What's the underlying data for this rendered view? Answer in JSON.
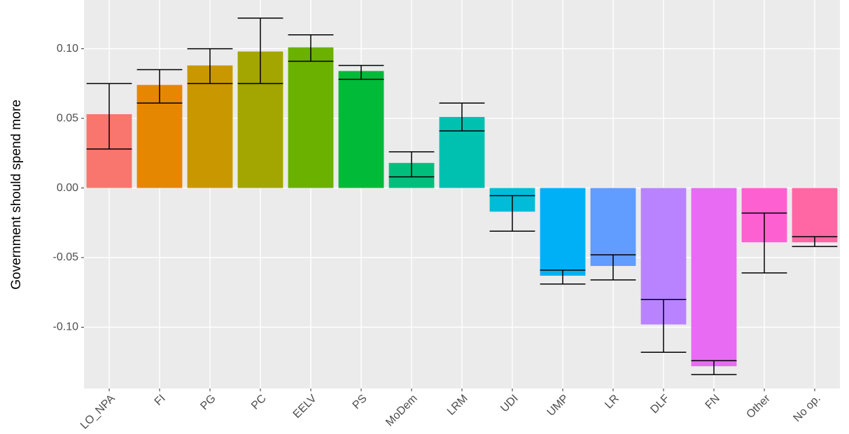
{
  "chart_data": {
    "type": "bar",
    "y_label": "Government should spend more",
    "categories": [
      "LO_NPA",
      "FI",
      "PG",
      "PC",
      "EELV",
      "PS",
      "MoDem",
      "LRM",
      "UDI",
      "UMP",
      "LR",
      "DLF",
      "FN",
      "Other",
      "No op."
    ],
    "values": [
      0.053,
      0.074,
      0.088,
      0.098,
      0.101,
      0.084,
      0.018,
      0.051,
      -0.017,
      -0.063,
      -0.056,
      -0.098,
      -0.128,
      -0.039,
      -0.039
    ],
    "error_low": [
      0.028,
      0.061,
      0.075,
      0.075,
      0.091,
      0.078,
      0.008,
      0.041,
      -0.031,
      -0.069,
      -0.066,
      -0.118,
      -0.134,
      -0.061,
      -0.042
    ],
    "error_high": [
      0.075,
      0.085,
      0.1,
      0.122,
      0.11,
      0.088,
      0.026,
      0.061,
      -0.0055,
      -0.059,
      -0.048,
      -0.08,
      -0.124,
      -0.018,
      -0.035
    ],
    "colors": [
      "#F8766D",
      "#E58700",
      "#C99800",
      "#A3A500",
      "#6BB100",
      "#00BA38",
      "#00BF7D",
      "#00C0AF",
      "#00BCD8",
      "#00B0F6",
      "#619CFF",
      "#B983FF",
      "#E76BF3",
      "#FD61D1",
      "#FF67A4"
    ],
    "ylim": [
      -0.144,
      0.135
    ],
    "yticks": [
      {
        "value": -0.1,
        "label": "-0.10"
      },
      -0.05,
      {
        "value": 0,
        "label": "0.00"
      },
      0.05,
      {
        "value": 0.1,
        "label": "0.10"
      }
    ],
    "grid": true
  }
}
